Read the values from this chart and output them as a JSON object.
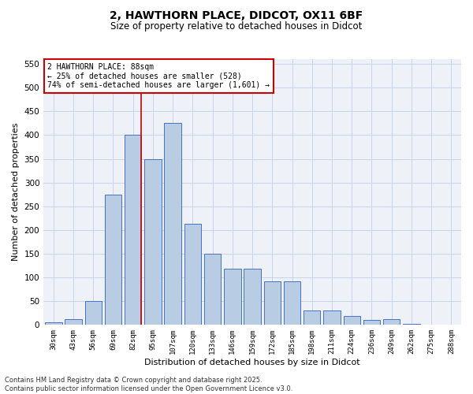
{
  "title_line1": "2, HAWTHORN PLACE, DIDCOT, OX11 6BF",
  "title_line2": "Size of property relative to detached houses in Didcot",
  "xlabel": "Distribution of detached houses by size in Didcot",
  "ylabel": "Number of detached properties",
  "categories": [
    "30sqm",
    "43sqm",
    "56sqm",
    "69sqm",
    "82sqm",
    "95sqm",
    "107sqm",
    "120sqm",
    "133sqm",
    "146sqm",
    "159sqm",
    "172sqm",
    "185sqm",
    "198sqm",
    "211sqm",
    "224sqm",
    "236sqm",
    "249sqm",
    "262sqm",
    "275sqm",
    "288sqm"
  ],
  "values": [
    5,
    13,
    50,
    275,
    400,
    350,
    425,
    213,
    150,
    118,
    118,
    92,
    92,
    30,
    30,
    18,
    10,
    12,
    2,
    1,
    1
  ],
  "bar_color": "#b8cce4",
  "bar_edge_color": "#4472c4",
  "grid_color": "#c8d4e8",
  "background_color": "#eef2f8",
  "vline_color": "#cc0000",
  "vline_x_index": 4,
  "annotation_text": "2 HAWTHORN PLACE: 88sqm\n← 25% of detached houses are smaller (528)\n74% of semi-detached houses are larger (1,601) →",
  "annotation_box_color": "#ffffff",
  "annotation_box_edge": "#cc0000",
  "footnote": "Contains HM Land Registry data © Crown copyright and database right 2025.\nContains public sector information licensed under the Open Government Licence v3.0.",
  "ylim": [
    0,
    560
  ],
  "yticks": [
    0,
    50,
    100,
    150,
    200,
    250,
    300,
    350,
    400,
    450,
    500,
    550
  ]
}
